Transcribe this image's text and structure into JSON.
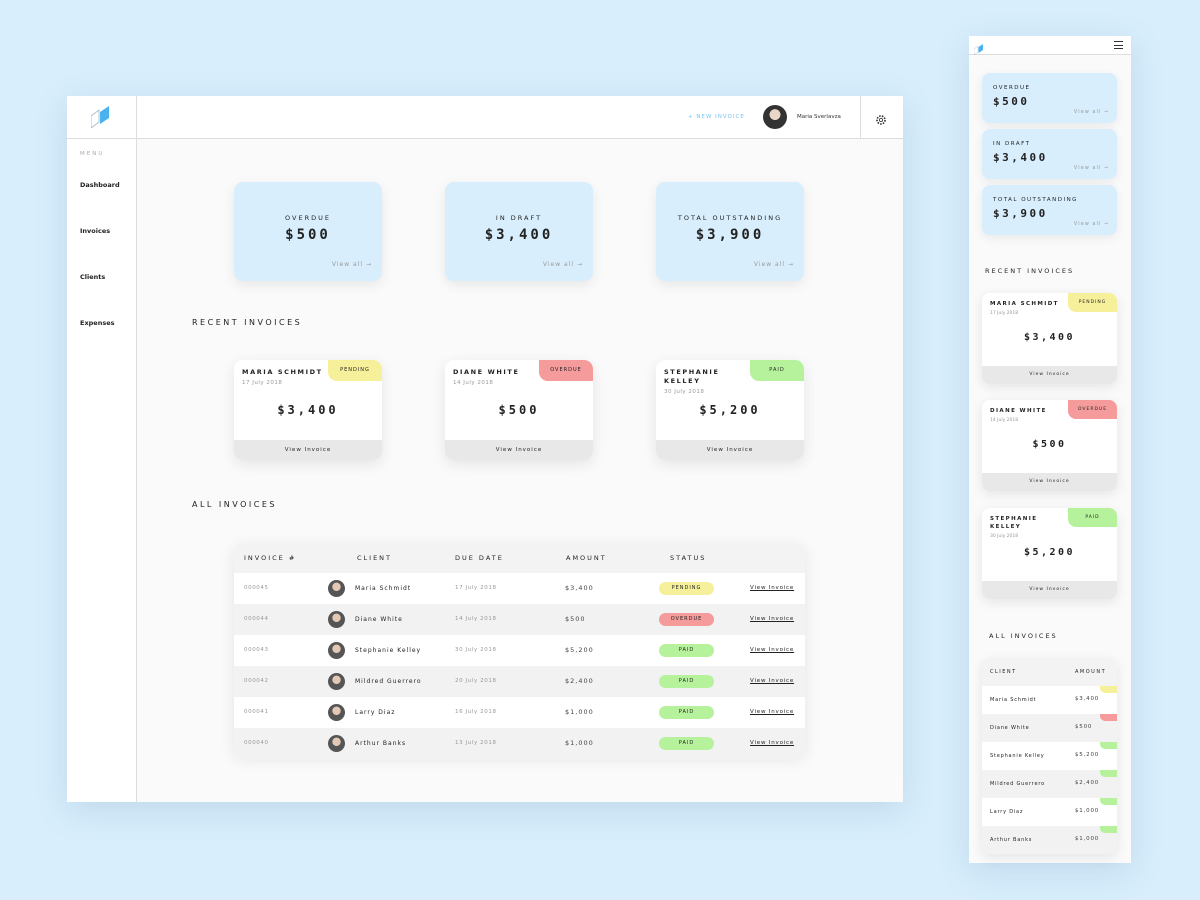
{
  "header": {
    "new_invoice": "+ NEW INVOICE",
    "user_name": "Maria Sverlavza"
  },
  "menu": {
    "label": "MENU",
    "items": [
      "Dashboard",
      "Invoices",
      "Clients",
      "Expenses"
    ]
  },
  "summary": [
    {
      "label": "OVERDUE",
      "amount": "$500",
      "link": "View all →"
    },
    {
      "label": "IN DRAFT",
      "amount": "$3,400",
      "link": "View all →"
    },
    {
      "label": "TOTAL OUTSTANDING",
      "amount": "$3,900",
      "link": "View all →"
    }
  ],
  "recent_invoices": {
    "title": "RECENT INVOICES",
    "action": "View Invoice",
    "cards": [
      {
        "name": "MARIA SCHMIDT",
        "date": "17 July 2018",
        "amount": "$3,400",
        "status": "PENDING"
      },
      {
        "name": "DIANE WHITE",
        "date": "14 July 2018",
        "amount": "$500",
        "status": "OVERDUE"
      },
      {
        "name": "STEPHANIE KELLEY",
        "date": "30 July 2018",
        "amount": "$5,200",
        "status": "PAID"
      }
    ]
  },
  "all_invoices": {
    "title": "ALL INVOICES",
    "columns": [
      "INVOICE #",
      "CLIENT",
      "DUE DATE",
      "AMOUNT",
      "STATUS"
    ],
    "action": "View Invoice",
    "rows": [
      {
        "id": "000045",
        "client": "Maria Schmidt",
        "due_date": "17 July 2018",
        "amount": "$3,400",
        "status": "PENDING"
      },
      {
        "id": "000044",
        "client": "Diane White",
        "due_date": "14 July 2018",
        "amount": "$500",
        "status": "OVERDUE"
      },
      {
        "id": "000043",
        "client": "Stephanie Kelley",
        "due_date": "30 July 2018",
        "amount": "$5,200",
        "status": "PAID"
      },
      {
        "id": "000042",
        "client": "Mildred Guerrero",
        "due_date": "20 July 2018",
        "amount": "$2,400",
        "status": "PAID"
      },
      {
        "id": "000041",
        "client": "Larry Diaz",
        "due_date": "16 July 2018",
        "amount": "$1,000",
        "status": "PAID"
      },
      {
        "id": "000040",
        "client": "Arthur Banks",
        "due_date": "13 July 2018",
        "amount": "$1,000",
        "status": "PAID"
      }
    ]
  },
  "status_colors": {
    "PENDING": "#f7f09b",
    "OVERDUE": "#f59b9b",
    "PAID": "#b6f29c"
  }
}
